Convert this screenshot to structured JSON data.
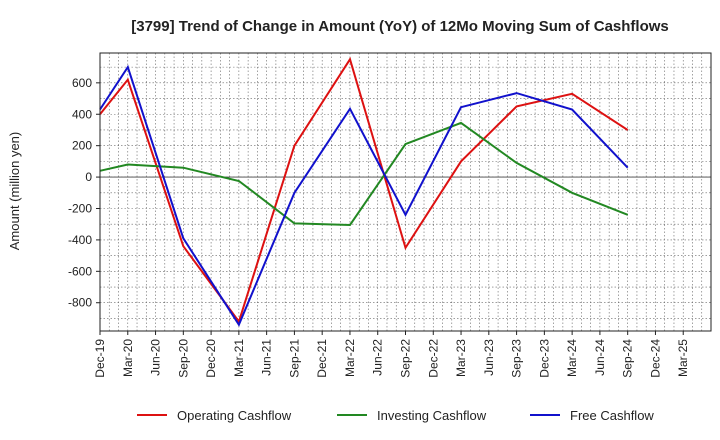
{
  "chart_data": {
    "type": "line",
    "title": "[3799]  Trend of Change in Amount (YoY) of 12Mo Moving Sum of Cashflows",
    "ylabel": "Amount (million yen)",
    "xlabel": "",
    "ylim": [
      -980,
      790
    ],
    "yticks": [
      -800,
      -600,
      -400,
      -200,
      0,
      200,
      400,
      600
    ],
    "categories": [
      "Dec-19",
      "Mar-20",
      "Jun-20",
      "Sep-20",
      "Dec-20",
      "Mar-21",
      "Jun-21",
      "Sep-21",
      "Dec-21",
      "Mar-22",
      "Jun-22",
      "Sep-22",
      "Dec-22",
      "Mar-23",
      "Jun-23",
      "Sep-23",
      "Dec-23",
      "Mar-24",
      "Jun-24",
      "Sep-24",
      "Dec-24",
      "Mar-25"
    ],
    "grid": true,
    "legend_position": "bottom",
    "series": [
      {
        "name": "Operating Cashflow",
        "color": "#dd1111",
        "values": [
          400,
          620,
          null,
          -440,
          null,
          -920,
          null,
          200,
          null,
          750,
          null,
          -450,
          null,
          100,
          null,
          450,
          null,
          530,
          null,
          300,
          null,
          null
        ]
      },
      {
        "name": "Investing Cashflow",
        "color": "#228822",
        "values": [
          40,
          80,
          null,
          60,
          null,
          -25,
          null,
          -295,
          null,
          -305,
          null,
          210,
          null,
          345,
          null,
          90,
          null,
          -100,
          null,
          -240,
          null,
          null
        ]
      },
      {
        "name": "Free Cashflow",
        "color": "#1111cc",
        "values": [
          430,
          700,
          null,
          -390,
          null,
          -940,
          null,
          -100,
          null,
          435,
          null,
          -240,
          null,
          445,
          null,
          535,
          null,
          430,
          null,
          60,
          null,
          null
        ]
      }
    ]
  }
}
